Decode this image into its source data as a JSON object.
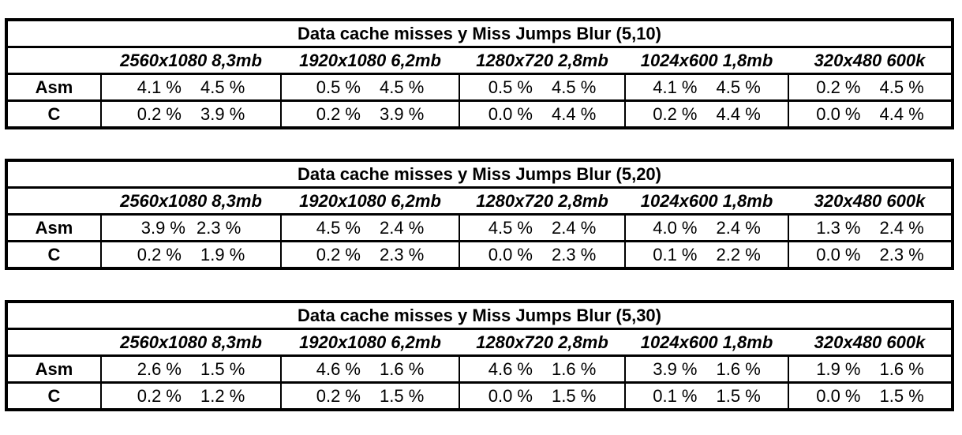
{
  "tables": [
    {
      "title": "Data cache misses y Miss Jumps Blur (5,10)",
      "columns": [
        "2560x1080 8,3mb",
        "1920x1080 6,2mb",
        "1280x720 2,8mb",
        "1024x600 1,8mb",
        "320x480 600k"
      ],
      "rows": [
        {
          "label": "Asm",
          "cells": [
            [
              "4.1 %",
              "4.5 %"
            ],
            [
              "0.5 %",
              "4.5 %"
            ],
            [
              "0.5 %",
              "4.5 %"
            ],
            [
              "4.1 %",
              "4.5 %"
            ],
            [
              "0.2 %",
              "4.5 %"
            ]
          ]
        },
        {
          "label": "C",
          "cells": [
            [
              "0.2 %",
              "3.9 %"
            ],
            [
              "0.2 %",
              "3.9 %"
            ],
            [
              "0.0 %",
              "4.4 %"
            ],
            [
              "0.2 %",
              "4.4 %"
            ],
            [
              "0.0 %",
              "4.4 %"
            ]
          ]
        }
      ]
    },
    {
      "title": "Data cache misses y Miss Jumps Blur (5,20)",
      "columns": [
        "2560x1080 8,3mb",
        "1920x1080 6,2mb",
        "1280x720 2,8mb",
        "1024x600 1,8mb",
        "320x480 600k"
      ],
      "rows": [
        {
          "label": "Asm",
          "cells": [
            [
              "3.9 %",
              "2.3 %"
            ],
            [
              "4.5 %",
              "2.4 %"
            ],
            [
              "4.5 %",
              "2.4 %"
            ],
            [
              "4.0 %",
              "2.4 %"
            ],
            [
              "1.3 %",
              "2.4 %"
            ]
          ]
        },
        {
          "label": "C",
          "cells": [
            [
              "0.2 %",
              "1.9 %"
            ],
            [
              "0.2 %",
              "2.3 %"
            ],
            [
              "0.0 %",
              "2.3 %"
            ],
            [
              "0.1 %",
              "2.2 %"
            ],
            [
              "0.0 %",
              "2.3 %"
            ]
          ]
        }
      ]
    },
    {
      "title": "Data cache misses y Miss Jumps Blur (5,30)",
      "columns": [
        "2560x1080 8,3mb",
        "1920x1080 6,2mb",
        "1280x720 2,8mb",
        "1024x600 1,8mb",
        "320x480 600k"
      ],
      "rows": [
        {
          "label": "Asm",
          "cells": [
            [
              "2.6 %",
              "1.5 %"
            ],
            [
              "4.6 %",
              "1.6 %"
            ],
            [
              "4.6 %",
              "1.6 %"
            ],
            [
              "3.9 %",
              "1.6 %"
            ],
            [
              "1.9 %",
              "1.6 %"
            ]
          ]
        },
        {
          "label": "C",
          "cells": [
            [
              "0.2 %",
              "1.2 %"
            ],
            [
              "0.2 %",
              "1.5 %"
            ],
            [
              "0.0 %",
              "1.5 %"
            ],
            [
              "0.1 %",
              "1.5 %"
            ],
            [
              "0.0 %",
              "1.5 %"
            ]
          ]
        }
      ]
    }
  ]
}
